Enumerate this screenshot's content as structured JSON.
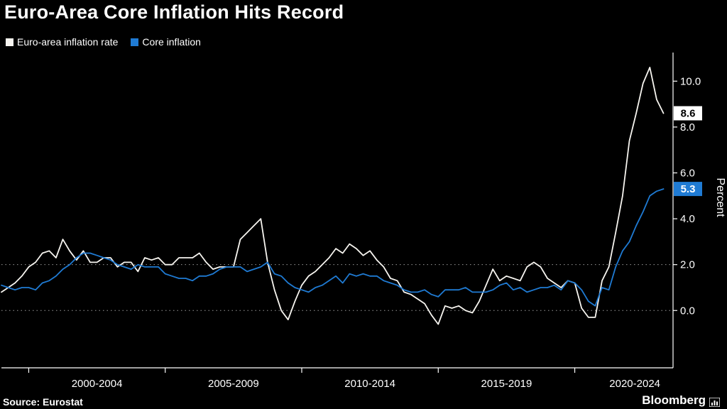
{
  "header": {
    "title": "Euro-Area Core Inflation Hits Record"
  },
  "legend": {
    "series1_label": "Euro-area inflation rate",
    "series2_label": "Core inflation"
  },
  "footer": {
    "source": "Source: Eurostat",
    "brand": "Bloomberg"
  },
  "colors": {
    "background": "#000000",
    "headline_line": "#f7f5f0",
    "core_line": "#1f7bd4",
    "axis": "#ffffff",
    "gridline": "#9a9a9a"
  },
  "chart_data": {
    "type": "line",
    "title": "Euro-Area Core Inflation Hits Record",
    "ylabel": "Percent",
    "xlabel": "",
    "x_start": 1999,
    "x_step": 0.25,
    "xlim": [
      1999,
      2023.6
    ],
    "ylim": [
      -2.5,
      11
    ],
    "yticks": [
      0,
      2,
      4,
      6,
      8,
      10
    ],
    "ytick_labels": [
      "0.0",
      "2.0",
      "4.0",
      "6.0",
      "8.0",
      "10.0"
    ],
    "gridlines_at": [
      0,
      2
    ],
    "grid": "dotted horizontal at 0.0 and 2.0",
    "legend_position": "top-left",
    "x_ticks": [
      2000,
      2005,
      2010,
      2015,
      2020
    ],
    "x_groups": [
      {
        "label": "2000-2004",
        "center": 2002.5
      },
      {
        "label": "2005-2009",
        "center": 2007.5
      },
      {
        "label": "2010-2014",
        "center": 2012.5
      },
      {
        "label": "2015-2019",
        "center": 2017.5
      },
      {
        "label": "2020-2024",
        "center": 2022.2
      }
    ],
    "series": [
      {
        "name": "Euro-area inflation rate",
        "color": "#f7f5f0",
        "last_label": "8.6",
        "last_value": 8.6,
        "values": [
          0.8,
          1.0,
          1.2,
          1.5,
          1.9,
          2.1,
          2.5,
          2.6,
          2.3,
          3.1,
          2.6,
          2.2,
          2.6,
          2.1,
          2.1,
          2.3,
          2.3,
          1.9,
          2.1,
          2.1,
          1.7,
          2.3,
          2.2,
          2.3,
          2.0,
          2.0,
          2.3,
          2.3,
          2.3,
          2.5,
          2.1,
          1.8,
          1.9,
          1.9,
          1.9,
          3.1,
          3.4,
          3.7,
          4.0,
          2.1,
          0.9,
          0.0,
          -0.4,
          0.4,
          1.1,
          1.5,
          1.7,
          2.0,
          2.3,
          2.7,
          2.5,
          2.9,
          2.7,
          2.4,
          2.6,
          2.2,
          1.9,
          1.4,
          1.3,
          0.8,
          0.7,
          0.5,
          0.3,
          -0.2,
          -0.6,
          0.2,
          0.1,
          0.2,
          0.0,
          -0.1,
          0.4,
          1.1,
          1.8,
          1.3,
          1.5,
          1.4,
          1.3,
          1.9,
          2.1,
          1.9,
          1.4,
          1.2,
          1.0,
          1.3,
          1.2,
          0.1,
          -0.3,
          -0.3,
          1.3,
          1.9,
          3.4,
          5.0,
          7.4,
          8.6,
          9.9,
          10.6,
          9.2,
          8.6
        ]
      },
      {
        "name": "Core inflation",
        "color": "#1f7bd4",
        "last_label": "5.3",
        "last_value": 5.3,
        "values": [
          1.1,
          1.0,
          0.9,
          1.0,
          1.0,
          0.9,
          1.2,
          1.3,
          1.5,
          1.8,
          2.0,
          2.3,
          2.5,
          2.5,
          2.4,
          2.3,
          2.2,
          2.0,
          1.9,
          1.8,
          2.0,
          1.9,
          1.9,
          1.9,
          1.6,
          1.5,
          1.4,
          1.4,
          1.3,
          1.5,
          1.5,
          1.6,
          1.8,
          1.9,
          1.9,
          1.9,
          1.7,
          1.8,
          1.9,
          2.1,
          1.6,
          1.5,
          1.2,
          1.0,
          0.9,
          0.8,
          1.0,
          1.1,
          1.3,
          1.5,
          1.2,
          1.6,
          1.5,
          1.6,
          1.5,
          1.5,
          1.3,
          1.2,
          1.1,
          0.9,
          0.8,
          0.8,
          0.9,
          0.7,
          0.6,
          0.9,
          0.9,
          0.9,
          1.0,
          0.8,
          0.8,
          0.8,
          0.9,
          1.1,
          1.2,
          0.9,
          1.0,
          0.8,
          0.9,
          1.0,
          1.0,
          1.1,
          0.9,
          1.3,
          1.2,
          0.9,
          0.4,
          0.2,
          1.0,
          0.9,
          1.9,
          2.6,
          3.0,
          3.7,
          4.3,
          5.0,
          5.2,
          5.3
        ]
      }
    ]
  }
}
